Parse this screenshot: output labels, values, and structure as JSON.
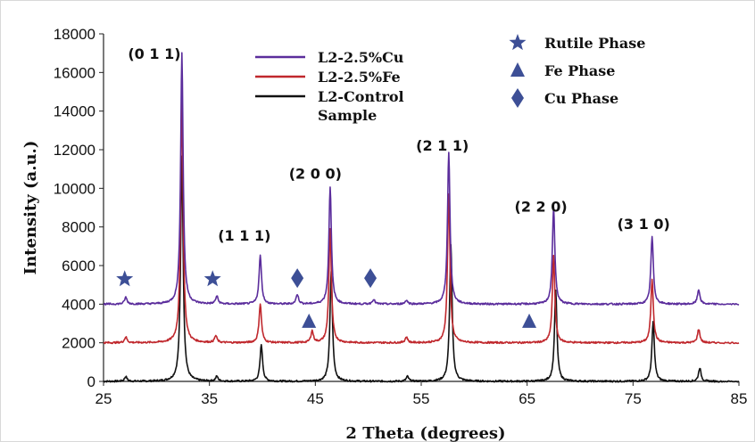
{
  "chart_data": {
    "type": "line",
    "title": "",
    "xlabel": "2 Theta (degrees)",
    "ylabel": "Intensity (a.u.)",
    "xlim": [
      25,
      85
    ],
    "ylim": [
      0,
      18000
    ],
    "xticks": [
      25,
      35,
      45,
      55,
      65,
      75,
      85
    ],
    "yticks": [
      0,
      2000,
      4000,
      6000,
      8000,
      10000,
      12000,
      14000,
      16000,
      18000
    ],
    "grid": false,
    "legend_position": "top-center",
    "series": [
      {
        "name": "L2-2.5%Cu",
        "color": "#5b2d9c",
        "baseline": 4000,
        "peaks": [
          {
            "x": 27.1,
            "y": 4350
          },
          {
            "x": 32.4,
            "y": 17000
          },
          {
            "x": 35.7,
            "y": 4400
          },
          {
            "x": 39.8,
            "y": 6500
          },
          {
            "x": 43.3,
            "y": 4500
          },
          {
            "x": 46.4,
            "y": 10100
          },
          {
            "x": 50.5,
            "y": 4250
          },
          {
            "x": 53.6,
            "y": 4200
          },
          {
            "x": 57.6,
            "y": 11900
          },
          {
            "x": 67.5,
            "y": 9000
          },
          {
            "x": 76.8,
            "y": 7500
          },
          {
            "x": 81.2,
            "y": 4750
          }
        ]
      },
      {
        "name": "L2-2.5%Fe",
        "color": "#c0282d",
        "baseline": 2000,
        "peaks": [
          {
            "x": 27.1,
            "y": 2300
          },
          {
            "x": 32.4,
            "y": 14600
          },
          {
            "x": 35.6,
            "y": 2350
          },
          {
            "x": 39.8,
            "y": 4000
          },
          {
            "x": 44.7,
            "y": 2600
          },
          {
            "x": 46.4,
            "y": 7900
          },
          {
            "x": 53.6,
            "y": 2300
          },
          {
            "x": 57.6,
            "y": 9700
          },
          {
            "x": 67.5,
            "y": 6500
          },
          {
            "x": 76.8,
            "y": 5300
          },
          {
            "x": 81.2,
            "y": 2700
          }
        ]
      },
      {
        "name": "L2-Control Sample",
        "color": "#111111",
        "baseline": 0,
        "peaks": [
          {
            "x": 27.1,
            "y": 250
          },
          {
            "x": 32.4,
            "y": 11700
          },
          {
            "x": 35.7,
            "y": 250
          },
          {
            "x": 39.9,
            "y": 1900
          },
          {
            "x": 46.5,
            "y": 5700
          },
          {
            "x": 53.7,
            "y": 250
          },
          {
            "x": 57.8,
            "y": 7100
          },
          {
            "x": 67.7,
            "y": 4700
          },
          {
            "x": 76.9,
            "y": 3100
          },
          {
            "x": 81.3,
            "y": 700
          }
        ]
      }
    ],
    "peak_labels": [
      {
        "text": "(0 1 1)",
        "x": 29.8,
        "y": 16700
      },
      {
        "text": "(1 1 1)",
        "x": 38.3,
        "y": 7300
      },
      {
        "text": "(2 0 0)",
        "x": 45.0,
        "y": 10500
      },
      {
        "text": "(2 1 1)",
        "x": 57.0,
        "y": 11950
      },
      {
        "text": "(2 2 0)",
        "x": 66.3,
        "y": 8800
      },
      {
        "text": "(3 1 0)",
        "x": 76.0,
        "y": 7900
      }
    ],
    "phase_markers": [
      {
        "phase": "Rutile Phase",
        "symbol": "star",
        "x": 27.0,
        "y": 5300
      },
      {
        "phase": "Rutile Phase",
        "symbol": "star",
        "x": 35.3,
        "y": 5300
      },
      {
        "phase": "Cu Phase",
        "symbol": "diamond",
        "x": 43.3,
        "y": 5350
      },
      {
        "phase": "Cu Phase",
        "symbol": "diamond",
        "x": 50.2,
        "y": 5350
      },
      {
        "phase": "Fe Phase",
        "symbol": "triangle",
        "x": 44.4,
        "y": 3100
      },
      {
        "phase": "Fe Phase",
        "symbol": "triangle",
        "x": 65.2,
        "y": 3100
      }
    ],
    "phase_legend": [
      {
        "label": "Rutile Phase",
        "symbol": "star"
      },
      {
        "label": "Fe Phase",
        "symbol": "triangle"
      },
      {
        "label": "Cu Phase",
        "symbol": "diamond"
      }
    ],
    "marker_color": "#3d4f96"
  }
}
